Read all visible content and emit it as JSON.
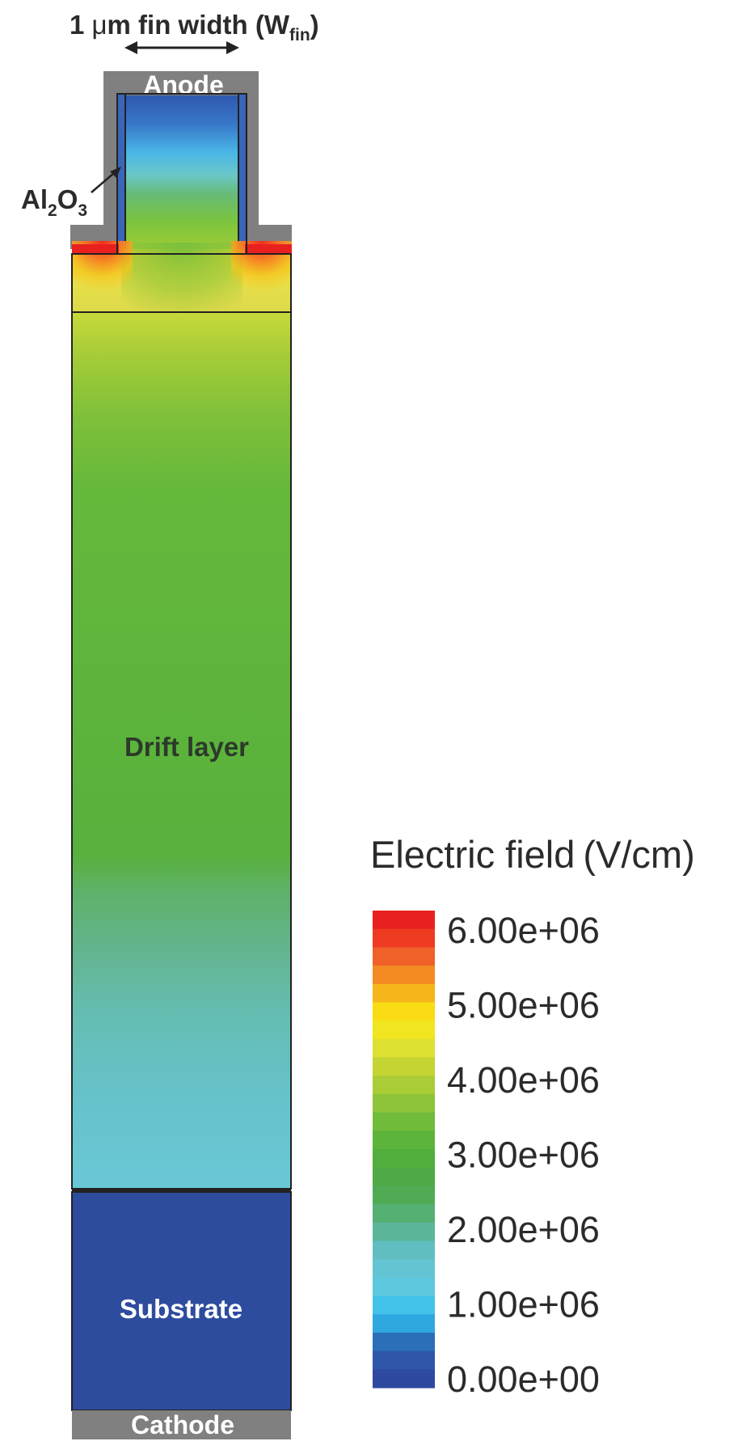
{
  "labels": {
    "fin_width_prefix": "1 ",
    "fin_width_mu": "μ",
    "fin_width_rest": "m fin width (W",
    "fin_width_sub": "fin",
    "fin_width_close": ")",
    "anode": "Anode",
    "oxide_main": "Al",
    "oxide_sub1": "2",
    "oxide_o": "O",
    "oxide_sub2": "3",
    "drift": "Drift layer",
    "substrate": "Substrate",
    "cathode": "Cathode"
  },
  "legend": {
    "title": "Electric field",
    "unit": "(V/cm)",
    "ticks": [
      "6.00e+06",
      "5.00e+06",
      "4.00e+06",
      "3.00e+06",
      "2.00e+06",
      "1.00e+06",
      "0.00e+00"
    ],
    "bands": [
      "#e8211f",
      "#ee3b22",
      "#f0612a",
      "#f38a22",
      "#f7b51c",
      "#f9dc14",
      "#f1e51f",
      "#dde031",
      "#c4d533",
      "#aacc36",
      "#8ec43a",
      "#71bb3b",
      "#5db43a",
      "#52ae3c",
      "#4faa45",
      "#4fac55",
      "#55b074",
      "#5bb69a",
      "#60bec0",
      "#63c4d3",
      "#5ec8df",
      "#43c3ea",
      "#2fa8e0",
      "#2b6fb8",
      "#2f56a8",
      "#2d4aa0"
    ]
  },
  "colors": {
    "metal": "#808080",
    "substrate": "#2e4c9e",
    "outline": "#333333"
  }
}
